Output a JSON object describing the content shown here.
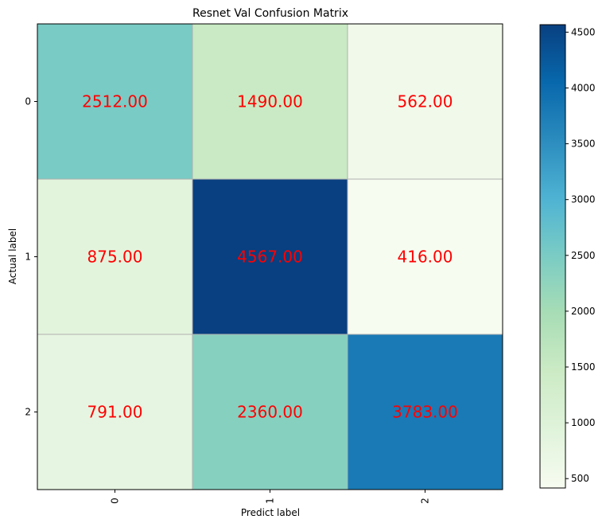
{
  "chart_data": {
    "type": "heatmap",
    "title": "Resnet Val Confusion Matrix",
    "xlabel": "Predict label",
    "ylabel": "Actual label",
    "x_categories": [
      "0",
      "1",
      "2"
    ],
    "y_categories": [
      "0",
      "1",
      "2"
    ],
    "values": [
      [
        2512,
        1490,
        562
      ],
      [
        875,
        4567,
        416
      ],
      [
        791,
        2360,
        3783
      ]
    ],
    "value_labels": [
      [
        "2512.00",
        "1490.00",
        "562.00"
      ],
      [
        "875.00",
        "4567.00",
        "416.00"
      ],
      [
        "791.00",
        "2360.00",
        "3783.00"
      ]
    ],
    "label_color": "#ff0000",
    "colormap": "GnBu",
    "colorbar": {
      "range": [
        416,
        4567
      ],
      "ticks": [
        500,
        1000,
        1500,
        2000,
        2500,
        3000,
        3500,
        4000,
        4500
      ]
    },
    "grid": true
  }
}
